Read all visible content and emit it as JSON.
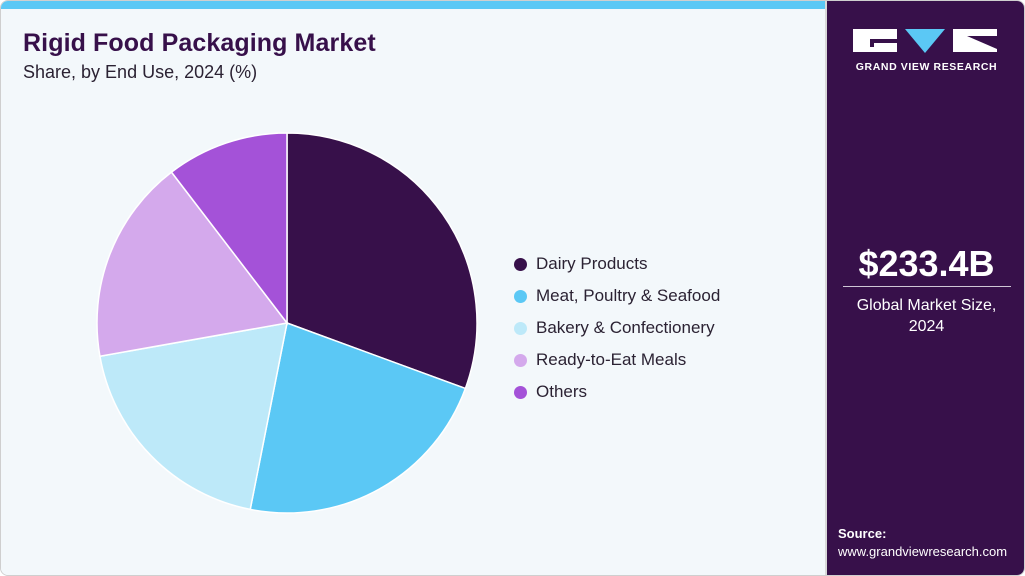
{
  "header": {
    "title": "Rigid Food Packaging Market",
    "subtitle": "Share, by End Use, 2024 (%)"
  },
  "legend": {
    "items": [
      {
        "label": "Dairy Products",
        "color": "#37104a"
      },
      {
        "label": "Meat, Poultry & Seafood",
        "color": "#5bc8f5"
      },
      {
        "label": "Bakery & Confectionery",
        "color": "#bde9f9"
      },
      {
        "label": "Ready-to-Eat Meals",
        "color": "#d4a9ec"
      },
      {
        "label": "Others",
        "color": "#a452d8"
      }
    ]
  },
  "sidebar": {
    "brand": "GRAND VIEW RESEARCH",
    "market_value": "$233.4B",
    "market_label_line1": "Global Market Size,",
    "market_label_line2": "2024",
    "source_label": "Source:",
    "source_url": "www.grandviewresearch.com"
  },
  "colors": {
    "accent_bar": "#5bc8f5",
    "sidebar_bg": "#37104a",
    "title": "#37104a",
    "background": "#f3f8fb"
  },
  "chart_data": {
    "type": "pie",
    "title": "Rigid Food Packaging Market",
    "subtitle": "Share, by End Use, 2024 (%)",
    "categories": [
      "Dairy Products",
      "Meat, Poultry & Seafood",
      "Bakery & Confectionery",
      "Ready-to-Eat Meals",
      "Others"
    ],
    "values": [
      30.6,
      22.5,
      19.1,
      17.4,
      10.4
    ],
    "colors": [
      "#37104a",
      "#5bc8f5",
      "#bde9f9",
      "#d4a9ec",
      "#a452d8"
    ],
    "start_angle_deg": 0,
    "direction": "clockwise",
    "legend_position": "right",
    "xlabel": "",
    "ylabel": ""
  }
}
